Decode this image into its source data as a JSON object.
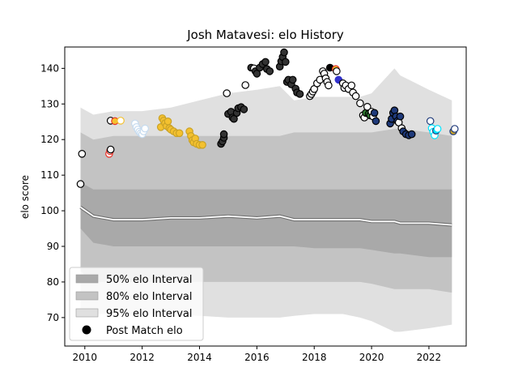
{
  "chart_data": {
    "type": "scatter",
    "title": "Josh Matavesi: elo History",
    "xlabel": "",
    "ylabel": "elo score",
    "xlim": [
      2009.3,
      2023.3
    ],
    "ylim": [
      62,
      146
    ],
    "x_ticks": [
      2010,
      2012,
      2014,
      2016,
      2018,
      2020,
      2022
    ],
    "y_ticks": [
      70,
      80,
      90,
      100,
      110,
      120,
      130,
      140
    ],
    "legend": {
      "position": "lower-left",
      "entries": [
        {
          "label": "50% elo Interval",
          "color": "#a9a9a9",
          "kind": "band"
        },
        {
          "label": "80% elo Interval",
          "color": "#c3c3c3",
          "kind": "band"
        },
        {
          "label": "95% elo Interval",
          "color": "#e0e0e0",
          "kind": "band"
        },
        {
          "label": "Post Match elo",
          "color": "#000000",
          "kind": "marker"
        }
      ]
    },
    "intervals": {
      "x": [
        2009.85,
        2010.3,
        2011,
        2012,
        2013,
        2014,
        2015,
        2016,
        2016.8,
        2017.3,
        2018,
        2019,
        2019.6,
        2020,
        2020.8,
        2021,
        2022,
        2022.8
      ],
      "mean": [
        101,
        98.5,
        97.5,
        97.5,
        98,
        98,
        98.5,
        98,
        98.5,
        97.5,
        97.5,
        97.5,
        97.5,
        97,
        97,
        96.5,
        96.5,
        96
      ],
      "p50_lo": [
        95,
        91,
        90,
        90,
        90,
        90,
        90,
        90,
        90,
        90,
        89.5,
        89.5,
        89.5,
        89,
        88,
        88,
        87,
        87
      ],
      "p50_hi": [
        108,
        106,
        106,
        106,
        106,
        106,
        106,
        106,
        106,
        106,
        106,
        106,
        106,
        106,
        106,
        106,
        106,
        106
      ],
      "p80_lo": [
        83,
        80,
        80,
        80,
        80,
        80,
        80,
        80,
        80,
        80,
        80,
        80,
        80,
        79.5,
        78,
        78,
        78,
        77
      ],
      "p80_hi": [
        122,
        120,
        121,
        121,
        121,
        121,
        121,
        121,
        121,
        122,
        122,
        122,
        122,
        122,
        123,
        123,
        122,
        121
      ],
      "p95_lo": [
        72,
        71,
        71,
        71,
        71,
        70.5,
        70,
        70,
        70,
        70.5,
        71,
        71,
        70,
        69,
        66,
        66,
        67,
        68
      ],
      "p95_hi": [
        129,
        127,
        128,
        128,
        129,
        131,
        133,
        134,
        135,
        131,
        132,
        132,
        132,
        133,
        140,
        138,
        134,
        131
      ]
    },
    "series": [
      {
        "name": "Post Match elo",
        "points": [
          {
            "x": 2009.85,
            "y": 107.5,
            "fill": "#ffffff",
            "edge": "#000000"
          },
          {
            "x": 2009.9,
            "y": 116,
            "fill": "#ffffff",
            "edge": "#000000"
          },
          {
            "x": 2010.85,
            "y": 116,
            "fill": "#ffffff",
            "edge": "#e8342b"
          },
          {
            "x": 2010.88,
            "y": 116.8,
            "fill": "#ffffff",
            "edge": "#e8342b"
          },
          {
            "x": 2010.9,
            "y": 117.2,
            "fill": "#ffffff",
            "edge": "#000000"
          },
          {
            "x": 2010.9,
            "y": 125.3,
            "fill": "#ffffff",
            "edge": "#000000"
          },
          {
            "x": 2011.05,
            "y": 125.2,
            "fill": "#f4c12f",
            "edge": "#e8342b"
          },
          {
            "x": 2011.25,
            "y": 125.3,
            "fill": "#ffffff",
            "edge": "#f4c12f"
          },
          {
            "x": 2011.75,
            "y": 124.5,
            "fill": "#ffffff",
            "edge": "#c6dbef"
          },
          {
            "x": 2011.8,
            "y": 123.5,
            "fill": "#ffffff",
            "edge": "#c6dbef"
          },
          {
            "x": 2011.85,
            "y": 122.8,
            "fill": "#ffffff",
            "edge": "#c6dbef"
          },
          {
            "x": 2011.9,
            "y": 122.2,
            "fill": "#ffffff",
            "edge": "#c6dbef"
          },
          {
            "x": 2011.95,
            "y": 121.8,
            "fill": "#ffffff",
            "edge": "#c6dbef"
          },
          {
            "x": 2012.0,
            "y": 121.5,
            "fill": "#ffffff",
            "edge": "#c6dbef"
          },
          {
            "x": 2012.05,
            "y": 122.3,
            "fill": "#ffffff",
            "edge": "#c6dbef"
          },
          {
            "x": 2012.1,
            "y": 123.1,
            "fill": "#ffffff",
            "edge": "#c6dbef"
          },
          {
            "x": 2012.65,
            "y": 123.5,
            "fill": "#f4c12f",
            "edge": "#c9a227"
          },
          {
            "x": 2012.7,
            "y": 126,
            "fill": "#f4c12f",
            "edge": "#c9a227"
          },
          {
            "x": 2012.75,
            "y": 125.3,
            "fill": "#f4c12f",
            "edge": "#c9a227"
          },
          {
            "x": 2012.8,
            "y": 124.6,
            "fill": "#f4c12f",
            "edge": "#c9a227"
          },
          {
            "x": 2012.85,
            "y": 123.8,
            "fill": "#f4c12f",
            "edge": "#c9a227"
          },
          {
            "x": 2012.9,
            "y": 125.1,
            "fill": "#f4c12f",
            "edge": "#c9a227"
          },
          {
            "x": 2012.95,
            "y": 123.2,
            "fill": "#f4c12f",
            "edge": "#c9a227"
          },
          {
            "x": 2013.0,
            "y": 122.8,
            "fill": "#f4c12f",
            "edge": "#c9a227"
          },
          {
            "x": 2013.1,
            "y": 122.3,
            "fill": "#f4c12f",
            "edge": "#c9a227"
          },
          {
            "x": 2013.2,
            "y": 121.8,
            "fill": "#f4c12f",
            "edge": "#c9a227"
          },
          {
            "x": 2013.3,
            "y": 121.8,
            "fill": "#f4c12f",
            "edge": "#c9a227"
          },
          {
            "x": 2013.65,
            "y": 122.3,
            "fill": "#f4c12f",
            "edge": "#c9a227"
          },
          {
            "x": 2013.7,
            "y": 121,
            "fill": "#f4c12f",
            "edge": "#c9a227"
          },
          {
            "x": 2013.75,
            "y": 119.8,
            "fill": "#f4c12f",
            "edge": "#c9a227"
          },
          {
            "x": 2013.8,
            "y": 119.2,
            "fill": "#f4c12f",
            "edge": "#c9a227"
          },
          {
            "x": 2013.85,
            "y": 120.3,
            "fill": "#f4c12f",
            "edge": "#c9a227"
          },
          {
            "x": 2013.9,
            "y": 118.8,
            "fill": "#f4c12f",
            "edge": "#c9a227"
          },
          {
            "x": 2014.0,
            "y": 118.5,
            "fill": "#f4c12f",
            "edge": "#c9a227"
          },
          {
            "x": 2014.1,
            "y": 118.5,
            "fill": "#f4c12f",
            "edge": "#c9a227"
          },
          {
            "x": 2014.75,
            "y": 118.8,
            "fill": "#333333",
            "edge": "#000000"
          },
          {
            "x": 2014.8,
            "y": 119.5,
            "fill": "#333333",
            "edge": "#000000"
          },
          {
            "x": 2014.85,
            "y": 120.5,
            "fill": "#333333",
            "edge": "#000000"
          },
          {
            "x": 2014.85,
            "y": 121.5,
            "fill": "#333333",
            "edge": "#000000"
          },
          {
            "x": 2014.95,
            "y": 133,
            "fill": "#ffffff",
            "edge": "#000000"
          },
          {
            "x": 2015.0,
            "y": 127.2,
            "fill": "#333333",
            "edge": "#000000"
          },
          {
            "x": 2015.1,
            "y": 127.8,
            "fill": "#333333",
            "edge": "#000000"
          },
          {
            "x": 2015.15,
            "y": 126.2,
            "fill": "#333333",
            "edge": "#000000"
          },
          {
            "x": 2015.2,
            "y": 125.8,
            "fill": "#333333",
            "edge": "#000000"
          },
          {
            "x": 2015.3,
            "y": 127.5,
            "fill": "#333333",
            "edge": "#000000"
          },
          {
            "x": 2015.35,
            "y": 128.8,
            "fill": "#333333",
            "edge": "#000000"
          },
          {
            "x": 2015.45,
            "y": 129.1,
            "fill": "#333333",
            "edge": "#000000"
          },
          {
            "x": 2015.55,
            "y": 128.5,
            "fill": "#333333",
            "edge": "#000000"
          },
          {
            "x": 2015.6,
            "y": 135.3,
            "fill": "#ffffff",
            "edge": "#000000"
          },
          {
            "x": 2015.8,
            "y": 140.2,
            "fill": "#333333",
            "edge": "#000000"
          },
          {
            "x": 2015.9,
            "y": 140,
            "fill": "#ffffff",
            "edge": "#000000"
          },
          {
            "x": 2015.95,
            "y": 139.2,
            "fill": "#333333",
            "edge": "#000000"
          },
          {
            "x": 2016.0,
            "y": 138.5,
            "fill": "#333333",
            "edge": "#000000"
          },
          {
            "x": 2016.1,
            "y": 140.2,
            "fill": "#333333",
            "edge": "#000000"
          },
          {
            "x": 2016.2,
            "y": 141.2,
            "fill": "#333333",
            "edge": "#000000"
          },
          {
            "x": 2016.3,
            "y": 141.8,
            "fill": "#333333",
            "edge": "#000000"
          },
          {
            "x": 2016.35,
            "y": 139.8,
            "fill": "#333333",
            "edge": "#000000"
          },
          {
            "x": 2016.45,
            "y": 139.2,
            "fill": "#333333",
            "edge": "#000000"
          },
          {
            "x": 2016.8,
            "y": 140.5,
            "fill": "#333333",
            "edge": "#000000"
          },
          {
            "x": 2016.85,
            "y": 142,
            "fill": "#333333",
            "edge": "#000000"
          },
          {
            "x": 2016.9,
            "y": 143.2,
            "fill": "#333333",
            "edge": "#000000"
          },
          {
            "x": 2016.95,
            "y": 144.5,
            "fill": "#333333",
            "edge": "#000000"
          },
          {
            "x": 2017.0,
            "y": 141.8,
            "fill": "#333333",
            "edge": "#000000"
          },
          {
            "x": 2017.05,
            "y": 136.2,
            "fill": "#333333",
            "edge": "#000000"
          },
          {
            "x": 2017.1,
            "y": 136.8,
            "fill": "#333333",
            "edge": "#000000"
          },
          {
            "x": 2017.2,
            "y": 135.5,
            "fill": "#333333",
            "edge": "#000000"
          },
          {
            "x": 2017.25,
            "y": 136.8,
            "fill": "#333333",
            "edge": "#000000"
          },
          {
            "x": 2017.35,
            "y": 134.3,
            "fill": "#333333",
            "edge": "#000000"
          },
          {
            "x": 2017.4,
            "y": 133.2,
            "fill": "#333333",
            "edge": "#000000"
          },
          {
            "x": 2017.5,
            "y": 132.8,
            "fill": "#333333",
            "edge": "#000000"
          },
          {
            "x": 2017.85,
            "y": 132.2,
            "fill": "#ffffff",
            "edge": "#000000"
          },
          {
            "x": 2017.9,
            "y": 132.8,
            "fill": "#ffffff",
            "edge": "#000000"
          },
          {
            "x": 2017.95,
            "y": 133.5,
            "fill": "#ffffff",
            "edge": "#000000"
          },
          {
            "x": 2018.0,
            "y": 134.2,
            "fill": "#ffffff",
            "edge": "#000000"
          },
          {
            "x": 2018.1,
            "y": 135.8,
            "fill": "#ffffff",
            "edge": "#000000"
          },
          {
            "x": 2018.2,
            "y": 136.8,
            "fill": "#ffffff",
            "edge": "#000000"
          },
          {
            "x": 2018.3,
            "y": 139.2,
            "fill": "#ffffff",
            "edge": "#000000"
          },
          {
            "x": 2018.35,
            "y": 138.5,
            "fill": "#ffffff",
            "edge": "#000000"
          },
          {
            "x": 2018.4,
            "y": 137.2,
            "fill": "#ffffff",
            "edge": "#000000"
          },
          {
            "x": 2018.45,
            "y": 136.2,
            "fill": "#ffffff",
            "edge": "#000000"
          },
          {
            "x": 2018.5,
            "y": 135.2,
            "fill": "#ffffff",
            "edge": "#000000"
          },
          {
            "x": 2018.55,
            "y": 140.2,
            "fill": "#000000",
            "edge": "#000000"
          },
          {
            "x": 2018.75,
            "y": 139.8,
            "fill": "#f4c12f",
            "edge": "#e8342b"
          },
          {
            "x": 2018.78,
            "y": 139.2,
            "fill": "#ffffff",
            "edge": "#000000"
          },
          {
            "x": 2018.85,
            "y": 136.8,
            "fill": "#3333cc",
            "edge": "#3333cc"
          },
          {
            "x": 2019.0,
            "y": 135.8,
            "fill": "#ffffff",
            "edge": "#000000"
          },
          {
            "x": 2019.05,
            "y": 134.5,
            "fill": "#ffffff",
            "edge": "#000000"
          },
          {
            "x": 2019.1,
            "y": 135.2,
            "fill": "#ffffff",
            "edge": "#000000"
          },
          {
            "x": 2019.2,
            "y": 134.2,
            "fill": "#ffffff",
            "edge": "#000000"
          },
          {
            "x": 2019.3,
            "y": 135.2,
            "fill": "#ffffff",
            "edge": "#000000"
          },
          {
            "x": 2019.35,
            "y": 133.2,
            "fill": "#ffffff",
            "edge": "#000000"
          },
          {
            "x": 2019.45,
            "y": 132.2,
            "fill": "#ffffff",
            "edge": "#000000"
          },
          {
            "x": 2019.6,
            "y": 130.2,
            "fill": "#ffffff",
            "edge": "#000000"
          },
          {
            "x": 2019.7,
            "y": 126.8,
            "fill": "#ffffff",
            "edge": "#000000"
          },
          {
            "x": 2019.75,
            "y": 126.2,
            "fill": "#ffffff",
            "edge": "#000000"
          },
          {
            "x": 2019.8,
            "y": 127.5,
            "fill": "#2e7d32",
            "edge": "#000000"
          },
          {
            "x": 2019.85,
            "y": 129.2,
            "fill": "#ffffff",
            "edge": "#000000"
          },
          {
            "x": 2019.9,
            "y": 127.2,
            "fill": "#2e7d32",
            "edge": "#000000"
          },
          {
            "x": 2019.95,
            "y": 126.8,
            "fill": "#2e7d32",
            "edge": "#000000"
          },
          {
            "x": 2020.0,
            "y": 127.8,
            "fill": "#ffffff",
            "edge": "#000000"
          },
          {
            "x": 2020.05,
            "y": 126.5,
            "fill": "#ffffff",
            "edge": "#000000"
          },
          {
            "x": 2020.1,
            "y": 127.5,
            "fill": "#1f3a7a",
            "edge": "#000000"
          },
          {
            "x": 2020.15,
            "y": 125.2,
            "fill": "#1f3a7a",
            "edge": "#000000"
          },
          {
            "x": 2020.65,
            "y": 124.5,
            "fill": "#1f3a7a",
            "edge": "#000000"
          },
          {
            "x": 2020.7,
            "y": 125.8,
            "fill": "#1f3a7a",
            "edge": "#000000"
          },
          {
            "x": 2020.75,
            "y": 127.5,
            "fill": "#1f3a7a",
            "edge": "#000000"
          },
          {
            "x": 2020.8,
            "y": 128.2,
            "fill": "#1f3a7a",
            "edge": "#000000"
          },
          {
            "x": 2020.85,
            "y": 126.5,
            "fill": "#1f3a7a",
            "edge": "#000000"
          },
          {
            "x": 2020.9,
            "y": 125.2,
            "fill": "#1f3a7a",
            "edge": "#000000"
          },
          {
            "x": 2020.95,
            "y": 124.8,
            "fill": "#ffffff",
            "edge": "#000000"
          },
          {
            "x": 2021.0,
            "y": 126.5,
            "fill": "#1f3a7a",
            "edge": "#000000"
          },
          {
            "x": 2021.05,
            "y": 123.2,
            "fill": "#ffffff",
            "edge": "#000000"
          },
          {
            "x": 2021.1,
            "y": 122.3,
            "fill": "#1f3a7a",
            "edge": "#000000"
          },
          {
            "x": 2021.2,
            "y": 121.5,
            "fill": "#1f3a7a",
            "edge": "#000000"
          },
          {
            "x": 2021.3,
            "y": 121.2,
            "fill": "#1f3a7a",
            "edge": "#000000"
          },
          {
            "x": 2021.4,
            "y": 121.5,
            "fill": "#1f3a7a",
            "edge": "#000000"
          },
          {
            "x": 2022.05,
            "y": 125.2,
            "fill": "#ffffff",
            "edge": "#1f3a7a"
          },
          {
            "x": 2022.1,
            "y": 123.2,
            "fill": "#ffffff",
            "edge": "#00e5ff"
          },
          {
            "x": 2022.15,
            "y": 122.2,
            "fill": "#ffffff",
            "edge": "#00e5ff"
          },
          {
            "x": 2022.2,
            "y": 121.2,
            "fill": "#ffffff",
            "edge": "#00e5ff"
          },
          {
            "x": 2022.25,
            "y": 122.5,
            "fill": "#00e5ff",
            "edge": "#1f3a7a"
          },
          {
            "x": 2022.3,
            "y": 123,
            "fill": "#ffffff",
            "edge": "#00e5ff"
          },
          {
            "x": 2022.85,
            "y": 122.3,
            "fill": "#c9a227",
            "edge": "#1f3a7a"
          },
          {
            "x": 2022.9,
            "y": 123,
            "fill": "#ffffff",
            "edge": "#1f3a7a"
          }
        ]
      }
    ],
    "grid": false
  }
}
